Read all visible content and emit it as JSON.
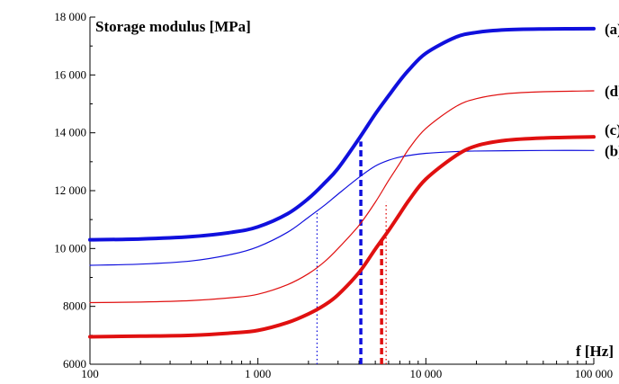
{
  "chart_data": {
    "type": "line",
    "ylabel": "Storage modulus [MPa]",
    "xlabel": "f [Hz]",
    "xscale": "log",
    "xlim": [
      100,
      100000
    ],
    "ylim": [
      6000,
      18000
    ],
    "grid": false,
    "legend": "labels at right end of each curve",
    "xticks": [
      {
        "value": 100,
        "label": "100"
      },
      {
        "value": 1000,
        "label": "1 000"
      },
      {
        "value": 10000,
        "label": "10 000"
      },
      {
        "value": 100000,
        "label": "100 000"
      }
    ],
    "yticks": [
      {
        "value": 6000,
        "label": "6000"
      },
      {
        "value": 8000,
        "label": "8000"
      },
      {
        "value": 10000,
        "label": "10 000"
      },
      {
        "value": 12000,
        "label": "12 000"
      },
      {
        "value": 14000,
        "label": "14 000"
      },
      {
        "value": 16000,
        "label": "16 000"
      },
      {
        "value": 18000,
        "label": "18 000"
      }
    ],
    "series": [
      {
        "name": "(a)",
        "color": "#1010dd",
        "weight": "thick",
        "x": [
          100,
          200,
          400,
          700,
          1000,
          1500,
          2000,
          2500,
          3000,
          4000,
          5000,
          6000,
          7000,
          8000,
          10000,
          15000,
          20000,
          30000,
          50000,
          100000
        ],
        "y": [
          10300,
          10330,
          10410,
          10560,
          10750,
          11200,
          11730,
          12270,
          12770,
          13800,
          14650,
          15280,
          15800,
          16200,
          16750,
          17300,
          17470,
          17560,
          17590,
          17600
        ]
      },
      {
        "name": "(b)",
        "color": "#1010dd",
        "weight": "thin",
        "x": [
          100,
          200,
          400,
          700,
          1000,
          1500,
          2000,
          2500,
          3000,
          4000,
          5000,
          6000,
          7000,
          8000,
          10000,
          15000,
          20000,
          30000,
          50000,
          100000
        ],
        "y": [
          9420,
          9460,
          9570,
          9800,
          10060,
          10560,
          11080,
          11500,
          11880,
          12460,
          12850,
          13050,
          13160,
          13220,
          13290,
          13350,
          13370,
          13380,
          13390,
          13390
        ]
      },
      {
        "name": "(c)",
        "color": "#e01010",
        "weight": "thick",
        "x": [
          100,
          200,
          400,
          700,
          1000,
          1500,
          2000,
          2500,
          3000,
          4000,
          5000,
          6000,
          7000,
          8000,
          10000,
          15000,
          20000,
          30000,
          50000,
          100000
        ],
        "y": [
          6950,
          6970,
          7000,
          7080,
          7170,
          7440,
          7740,
          8050,
          8400,
          9170,
          9980,
          10620,
          11200,
          11700,
          12400,
          13200,
          13550,
          13740,
          13820,
          13860
        ]
      },
      {
        "name": "(d)",
        "color": "#e01010",
        "weight": "thin",
        "x": [
          100,
          200,
          400,
          700,
          1000,
          1500,
          2000,
          2500,
          3000,
          4000,
          5000,
          6000,
          7000,
          8000,
          10000,
          15000,
          20000,
          30000,
          50000,
          100000
        ],
        "y": [
          8130,
          8150,
          8200,
          8300,
          8420,
          8750,
          9130,
          9550,
          10000,
          10800,
          11600,
          12350,
          12950,
          13480,
          14150,
          14900,
          15180,
          15350,
          15420,
          15450
        ]
      }
    ],
    "markers": [
      {
        "color": "#1010dd",
        "style": "dotted",
        "x": 2250,
        "y_top": 11300
      },
      {
        "color": "#1010dd",
        "style": "dashed",
        "x": 4100,
        "y_top": 13700
      },
      {
        "color": "#e01010",
        "style": "dashed",
        "x": 5450,
        "y_top": 10400
      },
      {
        "color": "#e01010",
        "style": "dotted",
        "x": 5800,
        "y_top": 11600
      }
    ]
  }
}
